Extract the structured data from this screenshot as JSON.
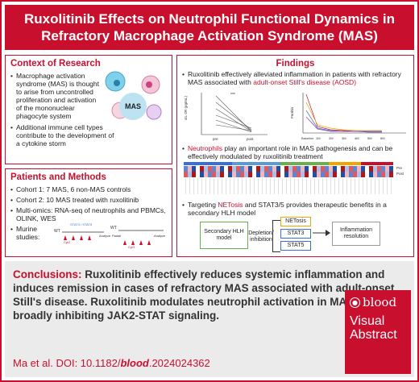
{
  "title": "Ruxolitinib Effects on Neutrophil Functional Dynamics in Refractory Macrophage Activation Syndrome (MAS)",
  "context": {
    "heading": "Context of Research",
    "bullets": [
      "Macrophage activation syndrome (MAS) is thought to arise from uncontrolled proliferation and activation of the mononuclear phagocyte system",
      "Additional immune cell types contribute to the development of a cytokine storm"
    ],
    "badge": "MAS"
  },
  "methods": {
    "heading": "Patients and Methods",
    "bullets": [
      "Cohort 1: 7 MAS, 6 non-MAS controls",
      "Cohort 2: 10 MAS treated with ruxolitinib",
      "Multi-omics: RNA-seq of neutrophils and PBMCs, OLINK, WES",
      "Murine studies:"
    ],
    "timeline1": {
      "wt": "WT",
      "days": [
        "0",
        "2",
        "4",
        "6",
        "8",
        "10"
      ],
      "tag": "CpG",
      "analyze": "Analyze",
      "extra": "STAT3 / STAT5"
    },
    "timeline2": {
      "wt": "WT",
      "days": [
        "0",
        "2",
        "4",
        "6",
        "8",
        "10"
      ],
      "tag": "CpG",
      "analyze": "Analyze",
      "extra": "Padall"
    }
  },
  "findings": {
    "heading": "Findings",
    "bullet1_a": "Ruxolitinib effectively alleviated inflammation in patients with refractory MAS associated with ",
    "bullet1_hl": "adult-onset Still's disease (AOSD)",
    "bullet2_hl": "Neutrophils",
    "bullet2_b": " play an important role in MAS pathogenesis and can be effectively modulated by ruxolitinib treatment",
    "bullet3_a": "Targeting ",
    "bullet3_hl": "NETosis",
    "bullet3_b": " and STAT3/5 provides therapeutic benefits in a secondary HLH model",
    "plot1": {
      "ylabel": "sIL-2R (pg/mL)",
      "xlabels": [
        "pre",
        "post"
      ],
      "sig": "***"
    },
    "plot2": {
      "ylabel": "Ferritin",
      "xlabels": [
        "Baseline",
        "1M",
        "2M",
        "3M",
        "4M",
        "5M",
        "6M"
      ]
    },
    "heatmap_legend": [
      "Pre",
      "Post"
    ],
    "diagram": {
      "left": "Secondary HLH model",
      "arrow": "Depletion/ inhibition",
      "targets": [
        "NETosis",
        "STAT3",
        "STAT5"
      ],
      "result": "Inflammation resolution"
    }
  },
  "conclusions": {
    "label": "Conclusions:",
    "text": " Ruxolitinib effectively reduces systemic inflammation and induces remission in cases of refractory MAS associated with adult-onset Still's disease. Ruxolitinib modulates neutrophil activation in MAS by broadly inhibiting JAK2-STAT signaling."
  },
  "citation": {
    "prefix": "Ma et al. DOI: 10.1182/",
    "journal": "blood",
    "suffix": ".2024024362"
  },
  "visual_abstract": {
    "brand": "blood",
    "line1": "Visual",
    "line2": "Abstract"
  },
  "colors": {
    "brand_red": "#c8102e",
    "netosis": "#f0a500",
    "stat3": "#3a6fd8",
    "stat5": "#3a6fd8",
    "hlh_box": "#6ab04c",
    "inflammation": "#999999"
  }
}
